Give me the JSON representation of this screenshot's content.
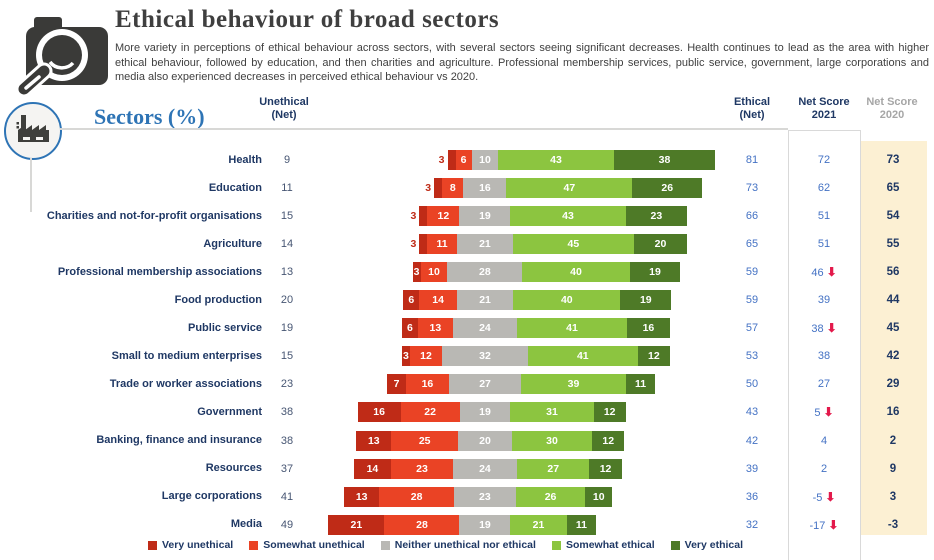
{
  "header": {
    "title": "Ethical behaviour of broad sectors",
    "subtitle": "More variety in perceptions of ethical behaviour across sectors, with several sectors seeing significant decreases. Health continues to lead as the area with higher ethical behaviour, followed by education, and then charities and agriculture. Professional membership services, public service, government, large corporations and media also experienced decreases in perceived ethical behaviour vs 2020."
  },
  "table": {
    "sectors_label": "Sectors (%)",
    "col_unethical": "Unethical\n(Net)",
    "col_ethical": "Ethical\n(Net)",
    "col_net_2021": "Net Score\n2021",
    "col_net_2020": "Net Score\n2020"
  },
  "colors": {
    "very_unethical": "#bf2b17",
    "somewhat_unethical": "#ea4325",
    "neither": "#b9b8b4",
    "somewhat_ethical": "#8cc540",
    "very_ethical": "#4e7a27",
    "accent_blue": "#2e74b5",
    "navy_text": "#1f3864",
    "value_blue": "#4472c4",
    "unethical_value_text": "#475673",
    "net2020_bg": "#fcf0d3",
    "net2020_header_gray": "#a6a6a6",
    "decrease_arrow_red": "#e3194b"
  },
  "legend": {
    "items": [
      {
        "label": "Very unethical",
        "color": "#bf2b17"
      },
      {
        "label": "Somewhat unethical",
        "color": "#ea4325"
      },
      {
        "label": "Neither unethical nor ethical",
        "color": "#b9b8b4"
      },
      {
        "label": "Somewhat ethical",
        "color": "#8cc540"
      },
      {
        "label": "Very ethical",
        "color": "#4e7a27"
      }
    ]
  },
  "chart_data": {
    "type": "bar",
    "subtype": "diverging-stacked-horizontal",
    "alignment": "bars centered on midpoint of the Neither segment",
    "categories": [
      "Health",
      "Education",
      "Charities and not-for-profit organisations",
      "Agriculture",
      "Professional membership associations",
      "Food production",
      "Public service",
      "Small to medium enterprises",
      "Trade or worker associations",
      "Government",
      "Banking, finance and insurance",
      "Resources",
      "Large corporations",
      "Media"
    ],
    "series": [
      {
        "name": "Very unethical",
        "color": "#bf2b17",
        "values": [
          3,
          3,
          3,
          3,
          3,
          6,
          6,
          3,
          7,
          16,
          13,
          14,
          13,
          21
        ]
      },
      {
        "name": "Somewhat unethical",
        "color": "#ea4325",
        "values": [
          6,
          8,
          12,
          11,
          10,
          14,
          13,
          12,
          16,
          22,
          25,
          23,
          28,
          28
        ]
      },
      {
        "name": "Neither unethical nor ethical",
        "color": "#b9b8b4",
        "values": [
          10,
          16,
          19,
          21,
          28,
          21,
          24,
          32,
          27,
          19,
          20,
          24,
          23,
          19
        ]
      },
      {
        "name": "Somewhat ethical",
        "color": "#8cc540",
        "values": [
          43,
          47,
          43,
          45,
          40,
          40,
          41,
          41,
          39,
          31,
          30,
          27,
          26,
          21
        ]
      },
      {
        "name": "Very ethical",
        "color": "#4e7a27",
        "values": [
          38,
          26,
          23,
          20,
          19,
          19,
          16,
          12,
          11,
          12,
          12,
          12,
          10,
          11
        ]
      }
    ],
    "unethical_net": [
      9,
      11,
      15,
      14,
      13,
      20,
      19,
      15,
      23,
      38,
      38,
      37,
      41,
      49
    ],
    "ethical_net": [
      81,
      73,
      66,
      65,
      59,
      59,
      57,
      53,
      50,
      43,
      42,
      39,
      36,
      32
    ],
    "net_score_2021": [
      72,
      62,
      51,
      51,
      46,
      39,
      38,
      38,
      27,
      5,
      4,
      2,
      -5,
      -17
    ],
    "net_score_2021_decrease_arrow": [
      false,
      false,
      false,
      false,
      true,
      false,
      true,
      false,
      false,
      true,
      false,
      false,
      true,
      true
    ],
    "net_score_2020": [
      73,
      65,
      54,
      55,
      56,
      44,
      45,
      42,
      29,
      16,
      2,
      9,
      3,
      -3
    ],
    "very_unethical_label_outside": [
      true,
      true,
      true,
      true,
      false,
      false,
      false,
      false,
      false,
      false,
      false,
      false,
      false,
      false
    ],
    "units": "%"
  }
}
